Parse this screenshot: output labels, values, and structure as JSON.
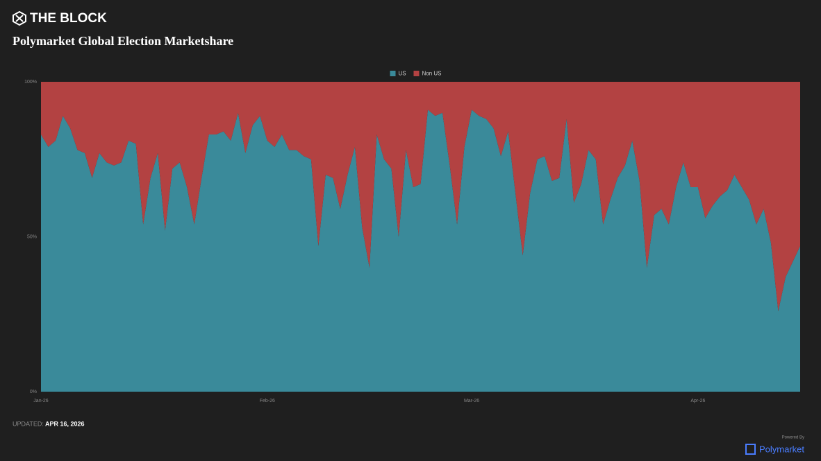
{
  "brand": "THE BLOCK",
  "footer": {
    "updated_label": "UPDATED:",
    "updated_date": "APR 16, 2026",
    "powered_by": "Powered By",
    "provider": "Polymarket"
  },
  "chart_data": {
    "type": "stacked_area",
    "title": "Polymarket Global Election Marketshare",
    "categories": [
      "Jan-26",
      null,
      null,
      null,
      null,
      null,
      null,
      null,
      null,
      null,
      null,
      null,
      null,
      null,
      null,
      null,
      null,
      null,
      null,
      null,
      null,
      null,
      null,
      null,
      null,
      null,
      null,
      null,
      null,
      null,
      null,
      "Feb-26",
      null,
      null,
      null,
      null,
      null,
      null,
      null,
      null,
      null,
      null,
      null,
      null,
      null,
      null,
      null,
      null,
      null,
      null,
      null,
      null,
      null,
      null,
      null,
      null,
      null,
      null,
      null,
      "Mar-26",
      null,
      null,
      null,
      null,
      null,
      null,
      null,
      null,
      null,
      null,
      null,
      null,
      null,
      null,
      null,
      null,
      null,
      null,
      null,
      null,
      null,
      null,
      null,
      null,
      null,
      null,
      null,
      null,
      null,
      null,
      "Apr-26",
      null,
      null,
      null,
      null,
      null,
      null,
      null,
      null,
      null,
      null,
      null,
      null,
      null,
      null
    ],
    "series": [
      {
        "name": "US",
        "color": "#3a8a9a",
        "values": [
          83,
          79,
          81,
          89,
          85,
          78,
          77,
          69,
          77,
          74,
          73,
          74,
          81,
          80,
          54,
          69,
          77,
          52,
          72,
          74,
          66,
          54,
          69,
          83,
          83,
          84,
          81,
          90,
          77,
          86,
          89,
          81,
          79,
          83,
          78,
          78,
          76,
          75,
          47,
          70,
          69,
          59,
          70,
          79,
          53,
          40,
          83,
          75,
          72,
          50,
          78,
          66,
          67,
          91,
          89,
          90,
          73,
          54,
          79,
          91,
          89,
          88,
          85,
          76,
          84,
          64,
          44,
          64,
          75,
          76,
          68,
          69,
          88,
          61,
          67,
          78,
          75,
          54,
          62,
          69,
          73,
          81,
          68,
          40,
          57,
          59,
          54,
          66,
          74,
          66,
          66,
          56,
          60,
          63,
          65,
          70,
          66,
          62,
          54,
          59,
          48,
          26,
          37,
          42,
          47
        ]
      },
      {
        "name": "Non US",
        "color": "#b34242",
        "values": [
          17,
          21,
          19,
          11,
          15,
          22,
          23,
          31,
          23,
          26,
          27,
          26,
          19,
          20,
          46,
          31,
          23,
          48,
          28,
          26,
          34,
          46,
          31,
          17,
          17,
          16,
          19,
          10,
          23,
          14,
          11,
          19,
          21,
          17,
          22,
          22,
          24,
          25,
          53,
          30,
          31,
          41,
          30,
          21,
          47,
          60,
          17,
          25,
          28,
          50,
          22,
          34,
          33,
          9,
          11,
          10,
          27,
          46,
          21,
          9,
          11,
          12,
          15,
          24,
          16,
          36,
          56,
          36,
          25,
          24,
          32,
          31,
          12,
          39,
          33,
          22,
          25,
          46,
          38,
          31,
          27,
          19,
          32,
          60,
          43,
          41,
          46,
          34,
          26,
          34,
          34,
          44,
          40,
          37,
          35,
          30,
          34,
          38,
          46,
          41,
          52,
          74,
          63,
          58,
          53
        ]
      }
    ],
    "ylim": [
      0,
      100
    ],
    "yticks": [
      {
        "value": 0,
        "label": "0%"
      },
      {
        "value": 50,
        "label": "50%"
      },
      {
        "value": 100,
        "label": "100%"
      }
    ],
    "legend": "top"
  }
}
